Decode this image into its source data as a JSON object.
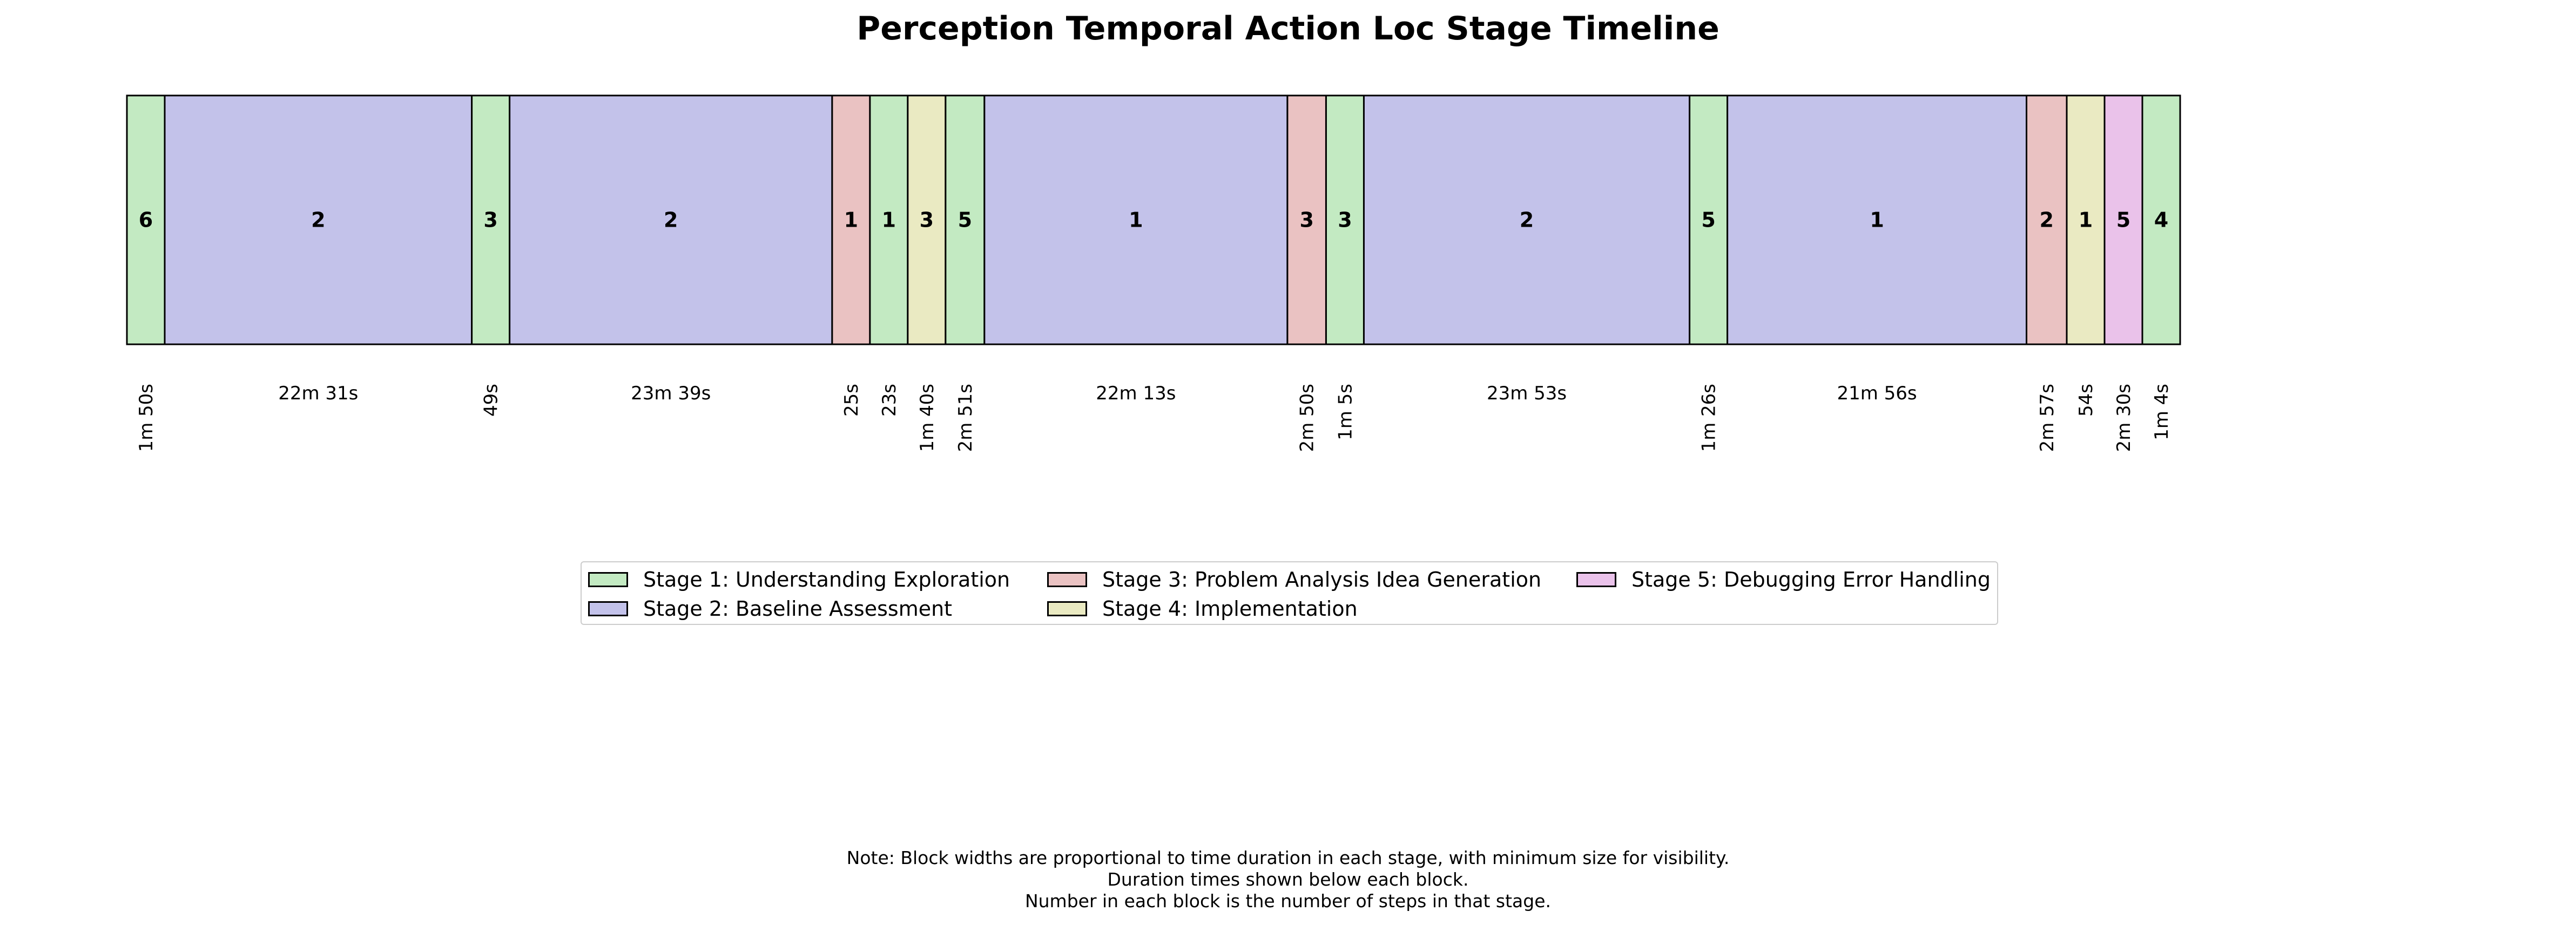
{
  "chart_data": {
    "type": "timeline",
    "title": "Perception Temporal Action Loc Stage Timeline",
    "blocks": [
      {
        "stage": 1,
        "steps": "6",
        "duration": "1m 50s"
      },
      {
        "stage": 2,
        "steps": "2",
        "duration": "22m 31s"
      },
      {
        "stage": 1,
        "steps": "3",
        "duration": "49s"
      },
      {
        "stage": 2,
        "steps": "2",
        "duration": "23m 39s"
      },
      {
        "stage": 3,
        "steps": "1",
        "duration": "25s"
      },
      {
        "stage": 1,
        "steps": "1",
        "duration": "23s"
      },
      {
        "stage": 4,
        "steps": "3",
        "duration": "1m 40s"
      },
      {
        "stage": 1,
        "steps": "5",
        "duration": "2m 51s"
      },
      {
        "stage": 2,
        "steps": "1",
        "duration": "22m 13s"
      },
      {
        "stage": 3,
        "steps": "3",
        "duration": "2m 50s"
      },
      {
        "stage": 1,
        "steps": "3",
        "duration": "1m 5s"
      },
      {
        "stage": 2,
        "steps": "2",
        "duration": "23m 53s"
      },
      {
        "stage": 1,
        "steps": "5",
        "duration": "1m 26s"
      },
      {
        "stage": 2,
        "steps": "1",
        "duration": "21m 56s"
      },
      {
        "stage": 3,
        "steps": "2",
        "duration": "2m 57s"
      },
      {
        "stage": 4,
        "steps": "1",
        "duration": "54s"
      },
      {
        "stage": 5,
        "steps": "5",
        "duration": "2m 30s"
      },
      {
        "stage": 1,
        "steps": "4",
        "duration": "1m 4s"
      }
    ],
    "legend": [
      {
        "stage": 1,
        "label": "Stage 1: Understanding Exploration",
        "color": "#c3eac2"
      },
      {
        "stage": 2,
        "label": "Stage 2: Baseline Assessment",
        "color": "#c3c2ea"
      },
      {
        "stage": 3,
        "label": "Stage 3: Problem Analysis Idea Generation",
        "color": "#eac2c2"
      },
      {
        "stage": 4,
        "label": "Stage 4: Implementation",
        "color": "#eaeac2"
      },
      {
        "stage": 5,
        "label": "Stage 5: Debugging Error Handling",
        "color": "#eac2ea"
      }
    ],
    "note": [
      "Note: Block widths are proportional to time duration in each stage, with minimum size for visibility.",
      "Duration times shown below each block.",
      "Number in each block is the number of steps in that stage."
    ]
  }
}
